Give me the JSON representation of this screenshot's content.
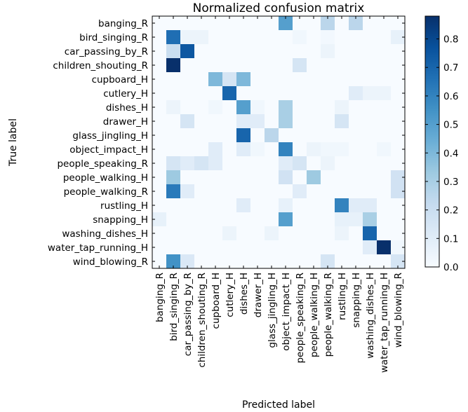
{
  "chart_data": {
    "type": "heatmap",
    "title": "Normalized confusion matrix",
    "xlabel": "Predicted label",
    "ylabel": "True label",
    "labels": [
      "banging_R",
      "bird_singing_R",
      "car_passing_by_R",
      "children_shouting_R",
      "cupboard_H",
      "cutlery_H",
      "dishes_H",
      "drawer_H",
      "glass_jingling_H",
      "object_impact_H",
      "people_speaking_R",
      "people_walking_H",
      "people_walking_R",
      "rustling_H",
      "snapping_H",
      "washing_dishes_H",
      "water_tap_running_H",
      "wind_blowing_R"
    ],
    "matrix": [
      [
        0,
        0,
        0,
        0,
        0,
        0,
        0,
        0,
        0,
        0.5,
        0,
        0,
        0.25,
        0,
        0.25,
        0,
        0,
        0
      ],
      [
        0,
        0.67,
        0.05,
        0.05,
        0,
        0,
        0,
        0,
        0,
        0,
        0.03,
        0,
        0.02,
        0,
        0,
        0,
        0,
        0.07
      ],
      [
        0,
        0.2,
        0.75,
        0,
        0,
        0,
        0,
        0,
        0,
        0,
        0,
        0,
        0.05,
        0,
        0,
        0,
        0,
        0
      ],
      [
        0,
        0.9,
        0,
        0,
        0,
        0,
        0,
        0,
        0,
        0,
        0.15,
        0,
        0,
        0,
        0,
        0,
        0,
        0
      ],
      [
        0,
        0,
        0,
        0,
        0.4,
        0.15,
        0.4,
        0,
        0,
        0,
        0,
        0,
        0,
        0,
        0,
        0,
        0,
        0
      ],
      [
        0,
        0,
        0,
        0,
        0,
        0.7,
        0,
        0,
        0,
        0,
        0,
        0,
        0,
        0,
        0.1,
        0.05,
        0.05,
        0
      ],
      [
        0,
        0.05,
        0,
        0,
        0.03,
        0,
        0.5,
        0.03,
        0,
        0.3,
        0,
        0,
        0,
        0.05,
        0,
        0,
        0,
        0
      ],
      [
        0,
        0,
        0.15,
        0,
        0,
        0,
        0.1,
        0.1,
        0,
        0.3,
        0,
        0,
        0,
        0.15,
        0,
        0,
        0,
        0
      ],
      [
        0,
        0,
        0,
        0,
        0,
        0,
        0.7,
        0,
        0.25,
        0,
        0,
        0,
        0,
        0,
        0,
        0,
        0,
        0
      ],
      [
        0,
        0,
        0,
        0,
        0.1,
        0,
        0.1,
        0.03,
        0,
        0.6,
        0,
        0.05,
        0.03,
        0.03,
        0,
        0,
        0.03,
        0
      ],
      [
        0,
        0.15,
        0.1,
        0.15,
        0.1,
        0,
        0,
        0,
        0,
        0.1,
        0.15,
        0,
        0.05,
        0,
        0,
        0,
        0,
        0
      ],
      [
        0,
        0.33,
        0,
        0,
        0,
        0,
        0,
        0,
        0,
        0.17,
        0,
        0.33,
        0,
        0,
        0,
        0,
        0,
        0.17
      ],
      [
        0,
        0.63,
        0.1,
        0,
        0,
        0,
        0,
        0,
        0,
        0,
        0.1,
        0,
        0,
        0,
        0,
        0,
        0,
        0.17
      ],
      [
        0,
        0,
        0,
        0,
        0,
        0,
        0.1,
        0,
        0,
        0.07,
        0,
        0,
        0,
        0.6,
        0.1,
        0.1,
        0,
        0
      ],
      [
        0.07,
        0,
        0,
        0,
        0,
        0,
        0,
        0,
        0,
        0.5,
        0,
        0,
        0,
        0.07,
        0.07,
        0.3,
        0,
        0
      ],
      [
        0,
        0,
        0,
        0,
        0,
        0.05,
        0,
        0,
        0.05,
        0,
        0,
        0,
        0,
        0.05,
        0,
        0.7,
        0,
        0
      ],
      [
        0,
        0,
        0,
        0,
        0,
        0,
        0,
        0,
        0,
        0,
        0,
        0,
        0,
        0,
        0,
        0.1,
        0.95,
        0.03
      ],
      [
        0,
        0.55,
        0.13,
        0,
        0,
        0,
        0,
        0,
        0,
        0,
        0,
        0,
        0.15,
        0,
        0,
        0,
        0,
        0.15
      ]
    ],
    "colorbar": {
      "range": [
        0,
        0.88
      ],
      "ticks": [
        "0.0",
        "0.1",
        "0.2",
        "0.3",
        "0.4",
        "0.5",
        "0.6",
        "0.7",
        "0.8"
      ],
      "colormap_stops": [
        "#f7fbff",
        "#deebf7",
        "#c6dbef",
        "#9ecae1",
        "#6baed6",
        "#4292c6",
        "#2171b5",
        "#08519c",
        "#08306b"
      ]
    }
  }
}
